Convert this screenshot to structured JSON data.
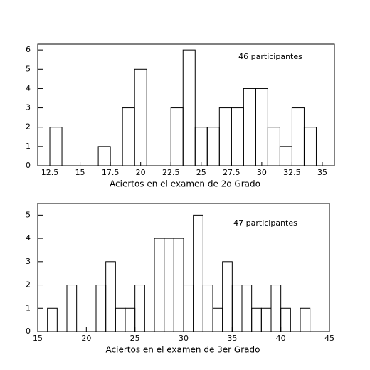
{
  "chart_data": [
    {
      "type": "histogram",
      "annotation": "46 participantes",
      "x_label": "Aciertos en el examen de 2o Grado",
      "bins": [
        12.5,
        13.5,
        14.5,
        15.5,
        16.5,
        17.5,
        18.5,
        19.5,
        20.5,
        21.5,
        22.5,
        23.5,
        24.5,
        25.5,
        26.5,
        27.5,
        28.5,
        29.5,
        30.5,
        31.5,
        32.5,
        33.5,
        34.5
      ],
      "values": [
        2,
        0,
        0,
        0,
        1,
        0,
        3,
        5,
        0,
        0,
        3,
        6,
        2,
        2,
        3,
        3,
        4,
        4,
        2,
        1,
        3,
        2
      ],
      "color": "#000000",
      "xlim": [
        11.5,
        36
      ],
      "xticks": [
        12.5,
        15,
        17.5,
        20,
        22.5,
        25,
        27.5,
        30,
        32.5,
        35
      ],
      "ylim": [
        0,
        6.3
      ],
      "yticks": [
        0,
        1,
        2,
        3,
        4,
        5,
        6
      ]
    },
    {
      "type": "histogram",
      "annotation": "47 participantes",
      "x_label": "Aciertos en el examen de 3er Grado",
      "bins": [
        16,
        17,
        18,
        19,
        20,
        21,
        22,
        23,
        24,
        25,
        26,
        27,
        28,
        29,
        30,
        31,
        32,
        33,
        34,
        35,
        36,
        37,
        38,
        39,
        40,
        41,
        42,
        43
      ],
      "values": [
        1,
        0,
        2,
        0,
        0,
        2,
        3,
        1,
        1,
        2,
        0,
        4,
        4,
        4,
        2,
        5,
        2,
        1,
        3,
        2,
        2,
        1,
        1,
        2,
        1,
        0,
        1
      ],
      "color": "#000000",
      "xlim": [
        15,
        45
      ],
      "xticks": [
        15,
        20,
        25,
        30,
        35,
        40,
        45
      ],
      "ylim": [
        0,
        5.5
      ],
      "yticks": [
        0,
        1,
        2,
        3,
        4,
        5
      ]
    }
  ]
}
